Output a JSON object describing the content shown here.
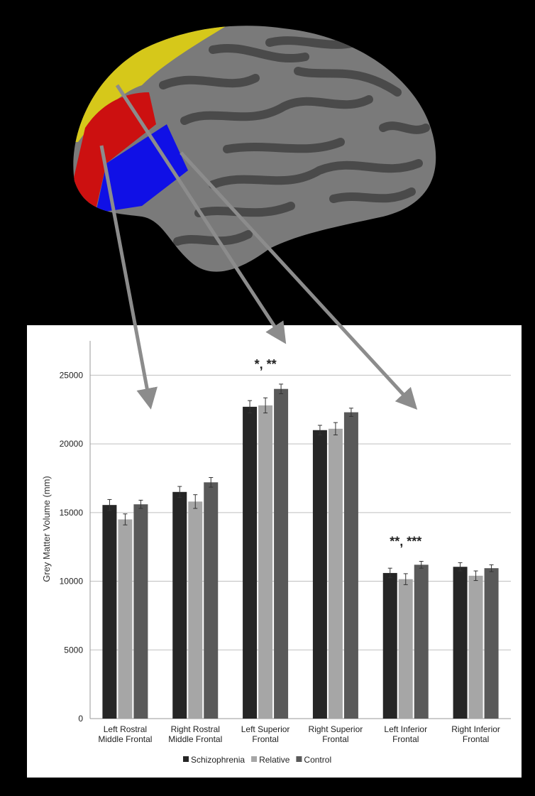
{
  "chart_data": {
    "type": "bar",
    "y_label": "Grey Matter Volume (mm)",
    "categories": [
      "Left Rostral Middle Frontal",
      "Right Rostral Middle Frontal",
      "Left Superior Frontal",
      "Right Superior Frontal",
      "Left Inferior Frontal",
      "Right Inferior Frontal"
    ],
    "series": [
      {
        "name": "Schizophrenia",
        "color": "#262626",
        "values": [
          15550,
          16500,
          22700,
          21000,
          10600,
          11050
        ],
        "errors": [
          400,
          400,
          450,
          350,
          350,
          300
        ]
      },
      {
        "name": "Relative",
        "color": "#a6a6a6",
        "values": [
          14500,
          15800,
          22800,
          21100,
          10150,
          10400
        ],
        "errors": [
          400,
          500,
          550,
          450,
          400,
          350
        ]
      },
      {
        "name": "Control",
        "color": "#595959",
        "values": [
          15600,
          17200,
          24000,
          22300,
          11200,
          10950
        ],
        "errors": [
          300,
          350,
          350,
          300,
          250,
          250
        ]
      }
    ],
    "annotations": [
      null,
      null,
      "*, **",
      null,
      "**, ***",
      null
    ],
    "ylim": [
      0,
      27500
    ],
    "yticks": [
      0,
      5000,
      10000,
      15000,
      20000,
      25000
    ],
    "grid": true,
    "legend": "bottom"
  }
}
